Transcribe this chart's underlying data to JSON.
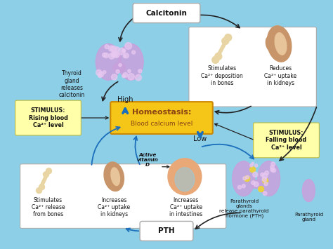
{
  "bg_color": "#8ECFE8",
  "calcitonin_label": "Calcitonin",
  "pth_label": "PTH",
  "stimulus_high": "STIMULUS:\nRising blood\nCa²⁺ level",
  "stimulus_low": "STIMULUS:\nFalling blood\nCa²⁺ level",
  "high_label": "High",
  "low_label": "Low",
  "thyroid_text": "Thyroid\ngland\nreleases\ncalcitonin",
  "upper_right_text1": "Stimulates\nCa²⁺ deposition\nin bones",
  "upper_right_text2": "Reduces\nCa²⁺ uptake\nin kidneys",
  "lower_left_text1": "Stimulates\nCa²⁺ release\nfrom bones",
  "lower_left_text2": "Increases\nCa²⁺ uptake\nin kidneys",
  "lower_left_text3": "Increases\nCa²⁺ uptake\nin intestines",
  "active_vit_d": "Active\nvitamin\nD",
  "parathyroid_text1": "Parathyroid\nglands\nrelease parathyroid\nhormone (PTH)",
  "parathyroid_text2": "Parathyroid\ngland",
  "homeostasis_line1": "Homeostasis:",
  "homeostasis_line2": "Blood calcium level",
  "thyroid_color": "#C9A0DC",
  "thyroid_dot_color": "#8B6090",
  "bone_color": "#E8D5A3",
  "kidney_color_dark": "#C8956A",
  "kidney_color_light": "#E8C49A",
  "intestine_color": "#E8A878",
  "parathyroid_color": "#C9A0DC",
  "parathyroid_dot_color": "#7B5090",
  "arrow_dark": "#222222",
  "arrow_blue": "#1A6EBB",
  "box_white": "#FFFFFF",
  "box_yellow_stim": "#FFFFAA",
  "box_homeostasis": "#F5C518",
  "text_dark": "#111111",
  "text_homeostasis": "#8B4513"
}
